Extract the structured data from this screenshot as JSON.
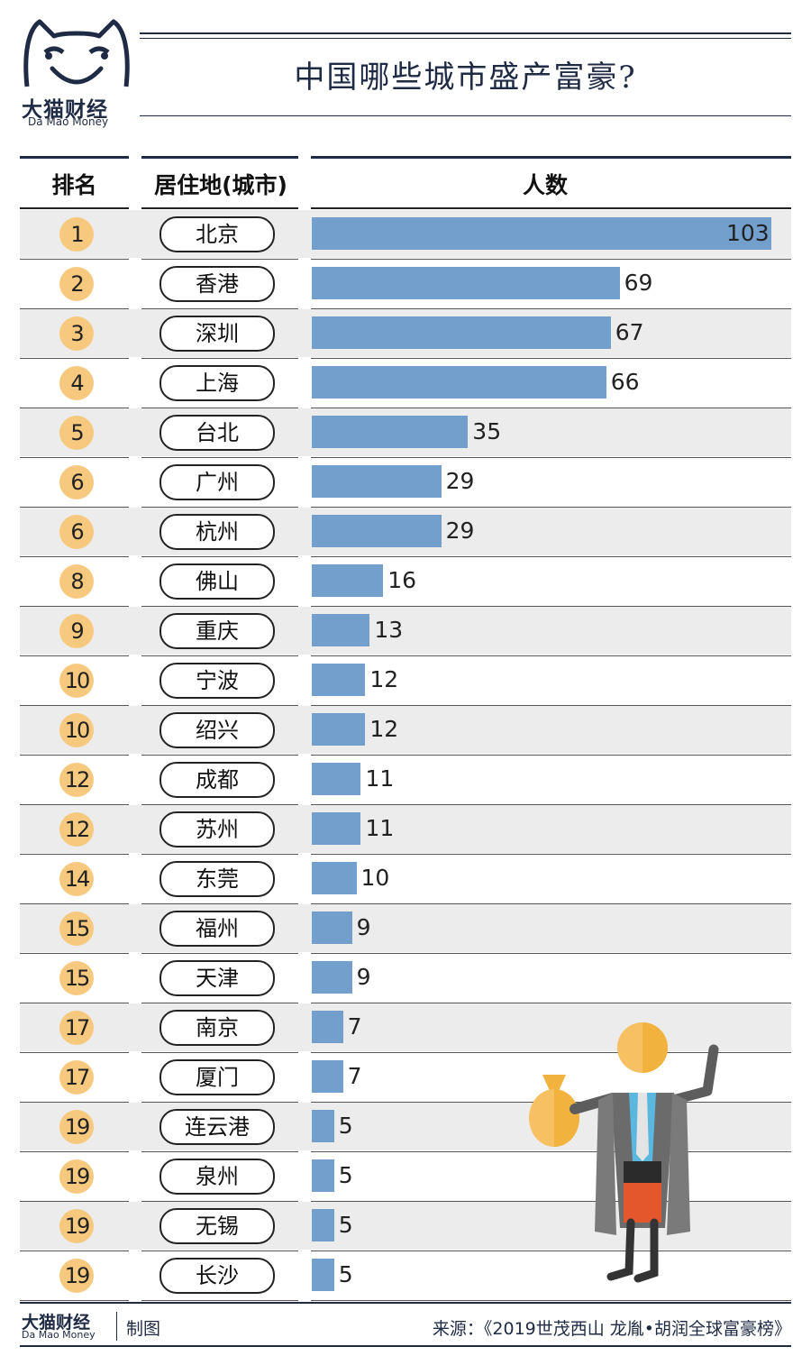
{
  "brand": {
    "name_cn": "大猫财经",
    "name_en": "Da Mao Money",
    "credit": "制图"
  },
  "title": "中国哪些城市盛产富豪?",
  "source": "来源：《2019世茂西山 龙胤•胡润全球富豪榜》",
  "colors": {
    "bar": "#739fcc",
    "rank_circle": "#f7c97e",
    "navy": "#1f2a44",
    "row_shade": "#ececec"
  },
  "chart_data": {
    "type": "bar",
    "orientation": "horizontal",
    "columns": [
      "排名",
      "居住地(城市)",
      "人数"
    ],
    "ranks": [
      "1",
      "2",
      "3",
      "4",
      "5",
      "6",
      "6",
      "8",
      "9",
      "10",
      "10",
      "12",
      "12",
      "14",
      "15",
      "15",
      "17",
      "17",
      "19",
      "19",
      "19",
      "19"
    ],
    "categories": [
      "北京",
      "香港",
      "深圳",
      "上海",
      "台北",
      "广州",
      "杭州",
      "佛山",
      "重庆",
      "宁波",
      "绍兴",
      "成都",
      "苏州",
      "东莞",
      "福州",
      "天津",
      "南京",
      "厦门",
      "连云港",
      "泉州",
      "无锡",
      "长沙"
    ],
    "values": [
      103,
      69,
      67,
      66,
      35,
      29,
      29,
      16,
      13,
      12,
      12,
      11,
      11,
      10,
      9,
      9,
      7,
      7,
      5,
      5,
      5,
      5
    ],
    "xlim": [
      0,
      103
    ],
    "value_labels": true,
    "grid": false,
    "legend": "none"
  }
}
